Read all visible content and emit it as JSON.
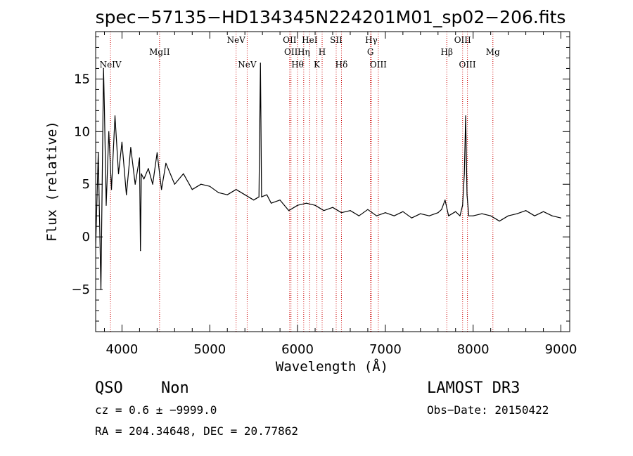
{
  "chart_data": {
    "type": "line",
    "title": "spec−57135−HD134345N224201M01_sp02−206.fits",
    "xlabel": "Wavelength (Å)",
    "ylabel": "Flux (relative)",
    "xlim": [
      3700,
      9100
    ],
    "ylim": [
      -9.0,
      19.5
    ],
    "x_ticks": [
      4000,
      5000,
      6000,
      7000,
      8000,
      9000
    ],
    "y_ticks": [
      -5,
      0,
      5,
      10,
      15
    ],
    "y_tick_labels": [
      "−5",
      "0",
      "5",
      "10",
      "15"
    ],
    "grid": false,
    "series": [
      {
        "name": "spectrum",
        "x": [
          3700,
          3730,
          3760,
          3790,
          3800,
          3820,
          3850,
          3880,
          3920,
          3960,
          4000,
          4050,
          4100,
          4150,
          4200,
          4210,
          4220,
          4250,
          4300,
          4350,
          4400,
          4450,
          4500,
          4600,
          4700,
          4800,
          4900,
          5000,
          5100,
          5200,
          5300,
          5400,
          5500,
          5560,
          5577,
          5590,
          5650,
          5700,
          5800,
          5900,
          6000,
          6100,
          6200,
          6300,
          6400,
          6500,
          6600,
          6700,
          6800,
          6900,
          7000,
          7100,
          7200,
          7300,
          7400,
          7500,
          7600,
          7640,
          7680,
          7720,
          7800,
          7850,
          7880,
          7900,
          7915,
          7930,
          7950,
          8000,
          8100,
          8200,
          8300,
          8400,
          8500,
          8600,
          8700,
          8800,
          8900,
          9000
        ],
        "y": [
          -1.0,
          8.0,
          -5.0,
          16.0,
          12.0,
          3.0,
          10.0,
          4.5,
          11.5,
          6.0,
          9.0,
          4.0,
          8.5,
          5.0,
          7.5,
          -1.3,
          6.0,
          5.5,
          6.5,
          5.0,
          8.0,
          4.5,
          7.0,
          5.0,
          6.0,
          4.5,
          5.0,
          4.8,
          4.2,
          4.0,
          4.5,
          4.0,
          3.5,
          3.8,
          16.5,
          3.8,
          4.0,
          3.2,
          3.5,
          2.5,
          3.0,
          3.2,
          3.0,
          2.5,
          2.8,
          2.3,
          2.5,
          2.0,
          2.6,
          2.0,
          2.3,
          2.0,
          2.4,
          1.8,
          2.2,
          2.0,
          2.3,
          2.6,
          3.5,
          2.0,
          2.4,
          2.0,
          3.0,
          6.0,
          11.5,
          4.0,
          2.0,
          2.0,
          2.2,
          2.0,
          1.5,
          2.0,
          2.2,
          2.5,
          2.0,
          2.4,
          2.0,
          1.8
        ]
      }
    ],
    "emission_lines": [
      {
        "label": "NeIV",
        "wavelength": 3869,
        "row": 3
      },
      {
        "label": "MgII",
        "wavelength": 4428,
        "row": 2
      },
      {
        "label": "NeV",
        "wavelength": 5300,
        "row": 1
      },
      {
        "label": "NeV",
        "wavelength": 5426,
        "row": 3
      },
      {
        "label": "OII",
        "wavelength": 5910,
        "row": 1
      },
      {
        "label": "OII",
        "wavelength": 5925,
        "row": 2
      },
      {
        "label": "Hθ",
        "wavelength": 6000,
        "row": 3
      },
      {
        "label": "Hη",
        "wavelength": 6070,
        "row": 2
      },
      {
        "label": "HeI",
        "wavelength": 6138,
        "row": 1
      },
      {
        "label": "K",
        "wavelength": 6220,
        "row": 3
      },
      {
        "label": "H",
        "wavelength": 6280,
        "row": 2
      },
      {
        "label": "SII",
        "wavelength": 6440,
        "row": 1
      },
      {
        "label": "Hδ",
        "wavelength": 6500,
        "row": 3
      },
      {
        "label": "G",
        "wavelength": 6830,
        "row": 2
      },
      {
        "label": "Hγ",
        "wavelength": 6840,
        "row": 1
      },
      {
        "label": "OIII",
        "wavelength": 6920,
        "row": 3
      },
      {
        "label": "Hβ",
        "wavelength": 7700,
        "row": 2
      },
      {
        "label": "OIII",
        "wavelength": 7880,
        "row": 1
      },
      {
        "label": "OIII",
        "wavelength": 7935,
        "row": 3
      },
      {
        "label": "Mg",
        "wavelength": 8225,
        "row": 2
      }
    ],
    "colors": {
      "spectrum": "#000000",
      "marker": "#cc0000",
      "axes": "#000000"
    }
  },
  "info": {
    "class": "QSO",
    "subclass": "Non",
    "survey": "LAMOST DR3",
    "cz": "cz = 0.6 ± −9999.0",
    "obs_date": "Obs−Date: 20150422",
    "coords": "RA = 204.34648, DEC =  20.77862"
  }
}
